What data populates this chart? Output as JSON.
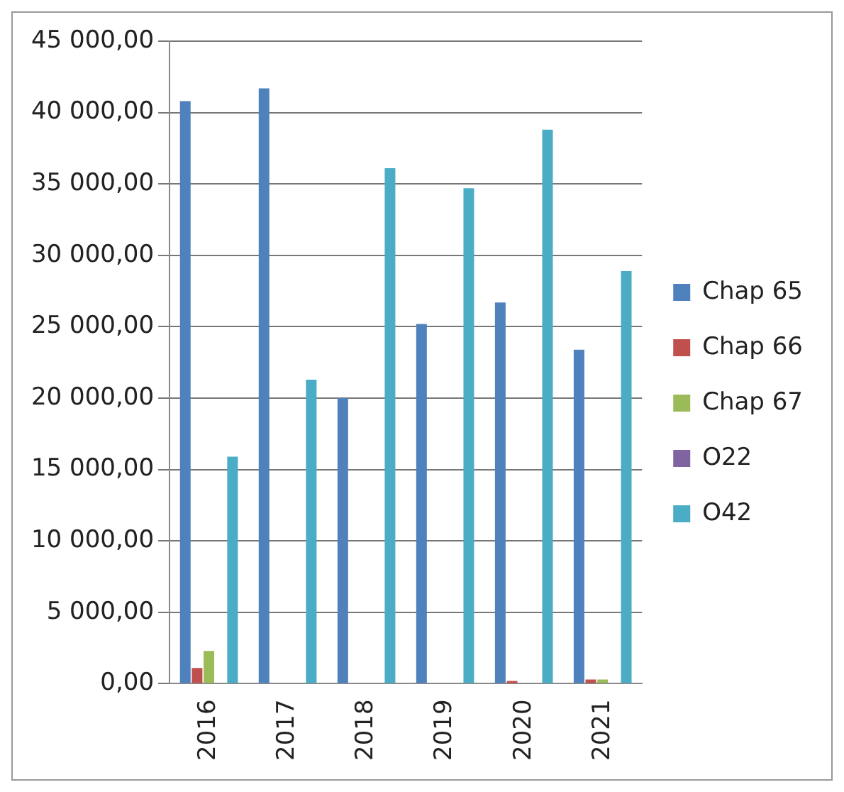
{
  "chart_data": {
    "type": "bar",
    "categories": [
      "2016",
      "2017",
      "2018",
      "2019",
      "2020",
      "2021"
    ],
    "series": [
      {
        "name": "Chap 65",
        "color": "#4f81bd",
        "values": [
          40800,
          41700,
          20000,
          25200,
          26700,
          23400
        ]
      },
      {
        "name": "Chap 66",
        "color": "#c0504d",
        "values": [
          1100,
          null,
          0,
          0,
          200,
          300
        ]
      },
      {
        "name": "Chap 67",
        "color": "#9bbb59",
        "values": [
          2300,
          0,
          0,
          0,
          0,
          300
        ]
      },
      {
        "name": "O22",
        "color": "#8064a2",
        "values": [
          0,
          0,
          0,
          0,
          0,
          null
        ]
      },
      {
        "name": "O42",
        "color": "#4bacc6",
        "values": [
          15900,
          21300,
          36100,
          34700,
          38800,
          28900
        ]
      }
    ],
    "ylim": [
      0,
      45000
    ],
    "yticks": [
      {
        "value": 0,
        "label": "0,00"
      },
      {
        "value": 5000,
        "label": "5 000,00"
      },
      {
        "value": 10000,
        "label": "10 000,00"
      },
      {
        "value": 15000,
        "label": "15 000,00"
      },
      {
        "value": 20000,
        "label": "20 000,00"
      },
      {
        "value": 25000,
        "label": "25 000,00"
      },
      {
        "value": 30000,
        "label": "30 000,00"
      },
      {
        "value": 35000,
        "label": "35 000,00"
      },
      {
        "value": 40000,
        "label": "40 000,00"
      },
      {
        "value": 45000,
        "label": "45 000,00"
      }
    ],
    "grid": "y",
    "legend": "right"
  }
}
